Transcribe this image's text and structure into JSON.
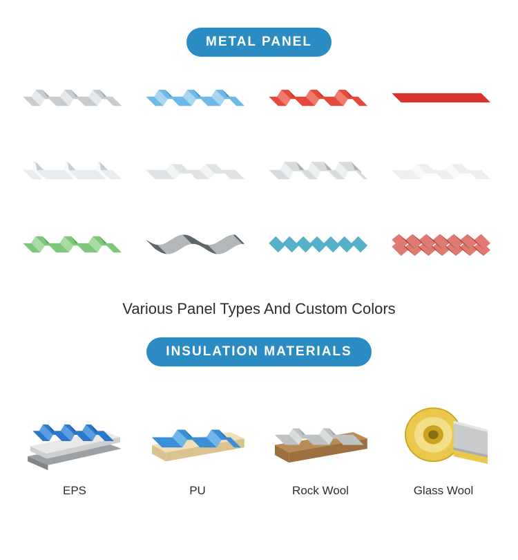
{
  "section1": {
    "title": "METAL PANEL",
    "subtitle": "Various Panel Types And Custom Colors",
    "panels": [
      {
        "type": "trapez",
        "base": "#c7ccd0",
        "light": "#e6e9eb",
        "dark": "#9ea5a9"
      },
      {
        "type": "trapez",
        "base": "#6fb9e6",
        "light": "#a8d6f2",
        "dark": "#3f93cf"
      },
      {
        "type": "trapez",
        "base": "#e34a3a",
        "light": "#f07a6c",
        "dark": "#c5362a"
      },
      {
        "type": "flat",
        "base": "#d6332a",
        "light": "#e86058",
        "dark": "#b02820"
      },
      {
        "type": "stand",
        "base": "#e9ecee",
        "light": "#f6f8f9",
        "dark": "#c6cdd1"
      },
      {
        "type": "wide",
        "base": "#dfe3e5",
        "light": "#f2f4f5",
        "dark": "#b9c0c4"
      },
      {
        "type": "rib",
        "base": "#d7dbdd",
        "light": "#edf0f1",
        "dark": "#abb2b6"
      },
      {
        "type": "wide",
        "base": "#eceeef",
        "light": "#f7f8f9",
        "dark": "#c9cfd2"
      },
      {
        "type": "trapez",
        "base": "#7ec679",
        "light": "#a7dba2",
        "dark": "#56a552"
      },
      {
        "type": "wave",
        "base": "#858b8e",
        "light": "#b3b8bb",
        "dark": "#5d6467"
      },
      {
        "type": "corrug",
        "base": "#2a8da9",
        "light": "#55b0c9",
        "dark": "#1d6d84"
      },
      {
        "type": "tile",
        "base": "#c94d45",
        "light": "#df7a73",
        "dark": "#aa3c35"
      }
    ]
  },
  "section2": {
    "title": "INSULATION MATERIALS",
    "items": [
      {
        "label": "EPS",
        "kind": "eps",
        "top": "#2b77c9",
        "topLight": "#5a9de0",
        "foam": "#e8e8e8",
        "foamDark": "#cfcfcf",
        "board": "#9aa0a4"
      },
      {
        "label": "PU",
        "kind": "pu",
        "top": "#3a8fd6",
        "topLight": "#72b5e7",
        "foam": "#efe0b8",
        "foamDark": "#d9c48f"
      },
      {
        "label": "Rock Wool",
        "kind": "rock",
        "top": "#bfc2c3",
        "topLight": "#dadcdd",
        "core": "#b88b57",
        "coreDark": "#9c713f"
      },
      {
        "label": "Glass Wool",
        "kind": "glass",
        "wrap": "#e9c84c",
        "wrapLight": "#f3de8a",
        "wrapDark": "#caa41e",
        "foil": "#c8cacb",
        "foilLight": "#e4e5e6"
      }
    ]
  },
  "colors": {
    "pill": "#2b8cc4",
    "text": "#2a2e33"
  }
}
